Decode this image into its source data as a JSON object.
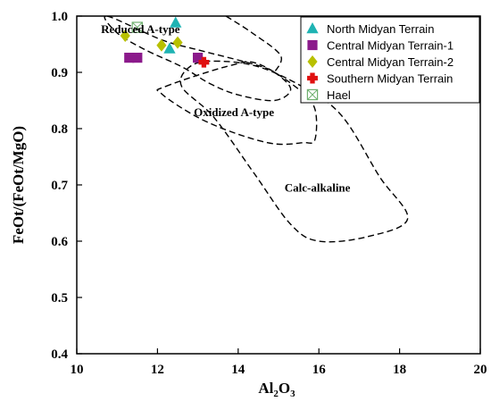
{
  "chart_data": {
    "type": "scatter",
    "title": "",
    "xlabel_main": "Al",
    "xlabel_sub1": "2",
    "xlabel_mid": "O",
    "xlabel_sub2": "3",
    "ylabel": "FeOt/(FeOt/MgO)",
    "xlim": [
      10,
      20
    ],
    "ylim": [
      0.4,
      1.0
    ],
    "xticks": [
      "10",
      "12",
      "14",
      "16",
      "18",
      "20"
    ],
    "yticks": [
      "0.4",
      "0.5",
      "0.6",
      "0.7",
      "0.8",
      "0.9",
      "1.0"
    ],
    "legend_position": "top-right",
    "series": [
      {
        "name": "North Midyan Terrain",
        "marker": "triangle",
        "color": "#1fb3b3",
        "x": [
          12.45,
          12.3
        ],
        "y": [
          0.988,
          0.942
        ]
      },
      {
        "name": "Central Midyan Terrain-1",
        "marker": "square",
        "color": "#8b1a8b",
        "x": [
          11.3,
          11.5,
          13.0
        ],
        "y": [
          0.926,
          0.926,
          0.926
        ]
      },
      {
        "name": "Central Midyan Terrain-2",
        "marker": "diamond",
        "color": "#b8c000",
        "x": [
          11.2,
          12.1,
          12.5
        ],
        "y": [
          0.965,
          0.948,
          0.953
        ]
      },
      {
        "name": "Southern Midyan Terrain",
        "marker": "cross",
        "color": "#e01010",
        "x": [
          13.15
        ],
        "y": [
          0.918
        ]
      },
      {
        "name": "Hael",
        "marker": "boxx",
        "color": "#70b070",
        "x": [
          11.5
        ],
        "y": [
          0.98
        ]
      }
    ],
    "fields": [
      {
        "name": "Reduced A-type",
        "label_x": 10.6,
        "label_y": 0.97,
        "points": [
          [
            10.75,
            1.0
          ],
          [
            12.1,
            0.958
          ],
          [
            13.0,
            0.94
          ],
          [
            14.35,
            0.915
          ],
          [
            14.9,
            0.9
          ],
          [
            15.3,
            0.87
          ],
          [
            14.9,
            0.85
          ],
          [
            14.0,
            0.86
          ],
          [
            13.3,
            0.88
          ],
          [
            12.6,
            0.91
          ],
          [
            11.7,
            0.94
          ],
          [
            11.0,
            0.97
          ]
        ]
      },
      {
        "name": "Oxidized A-type",
        "label_x": 12.9,
        "label_y": 0.822,
        "points": [
          [
            12.2,
            0.875
          ],
          [
            13.8,
            0.912
          ],
          [
            14.5,
            0.915
          ],
          [
            15.5,
            0.87
          ],
          [
            15.9,
            0.835
          ],
          [
            15.9,
            0.78
          ],
          [
            15.6,
            0.775
          ],
          [
            14.9,
            0.773
          ],
          [
            14.0,
            0.79
          ],
          [
            13.0,
            0.82
          ],
          [
            12.1,
            0.862
          ]
        ]
      },
      {
        "name": "Calc-alkaline",
        "label_x": 15.15,
        "label_y": 0.688,
        "points": [
          [
            13.4,
            0.92
          ],
          [
            14.5,
            0.91
          ],
          [
            15.7,
            0.87
          ],
          [
            16.6,
            0.82
          ],
          [
            17.5,
            0.715
          ],
          [
            18.2,
            0.64
          ],
          [
            17.2,
            0.608
          ],
          [
            16.0,
            0.6
          ],
          [
            15.3,
            0.63
          ],
          [
            14.4,
            0.72
          ],
          [
            13.4,
            0.82
          ],
          [
            12.6,
            0.875
          ],
          [
            12.8,
            0.91
          ]
        ]
      },
      {
        "name": "",
        "label_x": 0,
        "label_y": 0,
        "points": [
          [
            13.7,
            1.0
          ],
          [
            14.35,
            0.97
          ],
          [
            15.05,
            0.93
          ],
          [
            14.9,
            0.9
          ]
        ]
      }
    ]
  }
}
